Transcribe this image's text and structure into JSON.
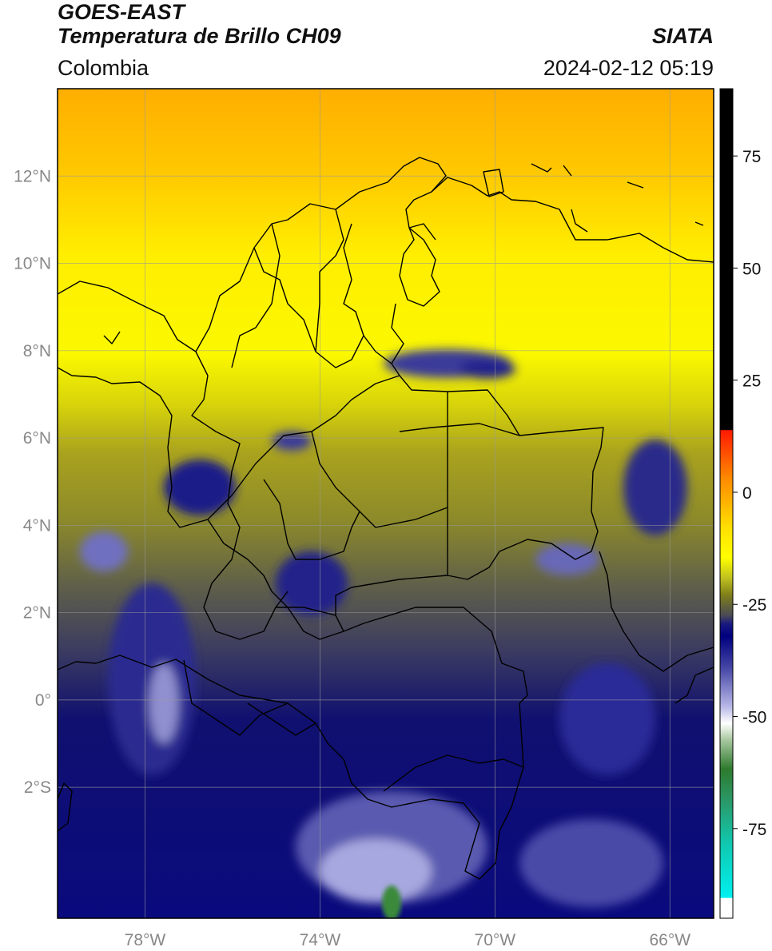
{
  "header": {
    "satellite": "GOES-EAST",
    "product": "Temperatura de Brillo CH09",
    "region": "Colombia",
    "source": "SIATA",
    "datetime": "2024-02-12 05:19"
  },
  "map": {
    "lat_ticks": [
      {
        "value": 12,
        "label": "12°N"
      },
      {
        "value": 10,
        "label": "10°N"
      },
      {
        "value": 8,
        "label": "8°N"
      },
      {
        "value": 6,
        "label": "6°N"
      },
      {
        "value": 4,
        "label": "4°N"
      },
      {
        "value": 2,
        "label": "2°N"
      },
      {
        "value": 0,
        "label": "0°"
      },
      {
        "value": -2,
        "label": "2°S"
      }
    ],
    "lon_ticks": [
      {
        "value": -78,
        "label": "78°W"
      },
      {
        "value": -74,
        "label": "74°W"
      },
      {
        "value": -70,
        "label": "70°W"
      },
      {
        "value": -66,
        "label": "66°W"
      }
    ],
    "lon_range": [
      -80,
      -65
    ],
    "lat_range": [
      -5,
      14
    ],
    "gridlines": true
  },
  "colorbar": {
    "unit_range": [
      -95,
      90
    ],
    "ticks": [
      {
        "value": 75,
        "label": "75"
      },
      {
        "value": 50,
        "label": "50"
      },
      {
        "value": 25,
        "label": "25"
      },
      {
        "value": 0,
        "label": "0"
      },
      {
        "value": -25,
        "label": "-25"
      },
      {
        "value": -50,
        "label": "-50"
      },
      {
        "value": -75,
        "label": "-75"
      }
    ],
    "colors": {
      "black": "#000000",
      "red": "#ff0000",
      "orange": "#ff9900",
      "yellow": "#ffff00",
      "olive": "#80801a",
      "gray": "#505058",
      "navy": "#000080",
      "lavender": "#b8b8e8",
      "white": "#ffffff",
      "green": "#2e8b2e",
      "cyan": "#00e5e5"
    }
  }
}
